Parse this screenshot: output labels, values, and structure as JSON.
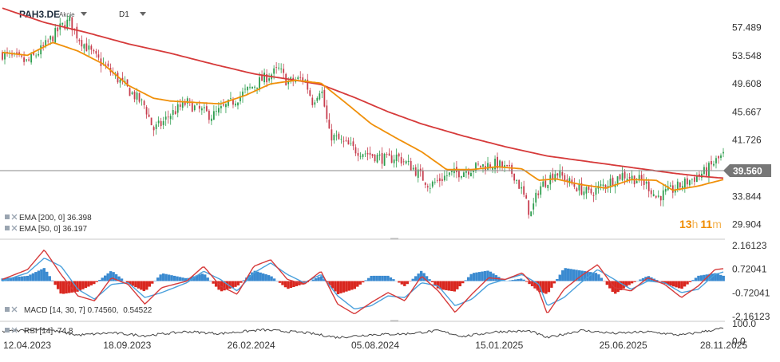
{
  "header": {
    "symbol": "PAH3.DE",
    "instrument_type": "Akcje",
    "timeframe": "D1"
  },
  "chart_data": [
    {
      "type": "candlestick",
      "title": "PAH3.DE",
      "x_ticks": [
        "12.04.2023",
        "18.09.2023",
        "26.02.2024",
        "05.08.2024",
        "15.01.2025",
        "25.06.2025",
        "28.11.2025"
      ],
      "y_ticks": [
        "57.489",
        "53.548",
        "49.608",
        "45.667",
        "41.726",
        "37.785",
        "33.844",
        "29.904"
      ],
      "ylim": [
        28.3,
        60.0
      ],
      "current_price": "39.560",
      "current_value": 39.56,
      "countdown": {
        "hours": "13",
        "h_unit": "h",
        "minutes": "11",
        "m_unit": "m"
      },
      "grid": false,
      "close_series": [
        [
          0,
          53.8
        ],
        [
          3,
          52.6
        ],
        [
          5,
          54.8
        ],
        [
          7,
          57.6
        ],
        [
          8,
          58.4
        ],
        [
          9,
          56.2
        ],
        [
          11,
          53.4
        ],
        [
          13,
          51.2
        ],
        [
          15,
          48.8
        ],
        [
          17,
          46.5
        ],
        [
          18,
          43.2
        ],
        [
          19,
          44.0
        ],
        [
          20,
          45.3
        ],
        [
          22,
          47.0
        ],
        [
          23,
          46.2
        ],
        [
          25,
          45.1
        ],
        [
          27,
          46.7
        ],
        [
          29,
          48.5
        ],
        [
          31,
          50.2
        ],
        [
          33,
          51.6
        ],
        [
          34,
          49.8
        ],
        [
          36,
          50.4
        ],
        [
          37,
          47.1
        ],
        [
          38,
          49.2
        ],
        [
          39,
          42.5
        ],
        [
          40,
          41.8
        ],
        [
          42,
          40.4
        ],
        [
          44,
          39.7
        ],
        [
          46,
          38.9
        ],
        [
          47,
          39.5
        ],
        [
          49,
          37.8
        ],
        [
          51,
          35.4
        ],
        [
          53,
          36.8
        ],
        [
          55,
          37.4
        ],
        [
          57,
          38.1
        ],
        [
          59,
          38.4
        ],
        [
          61,
          37.0
        ],
        [
          62,
          34.5
        ],
        [
          63,
          31.2
        ],
        [
          64,
          35.0
        ],
        [
          66,
          37.3
        ],
        [
          68,
          35.5
        ],
        [
          70,
          34.2
        ],
        [
          72,
          35.6
        ],
        [
          74,
          36.9
        ],
        [
          76,
          36.1
        ],
        [
          77,
          35.4
        ],
        [
          78,
          33.7
        ],
        [
          80,
          34.8
        ],
        [
          82,
          36.1
        ],
        [
          84,
          37.4
        ],
        [
          85,
          38.7
        ],
        [
          86,
          39.56
        ]
      ],
      "series": [
        {
          "name": "EMA",
          "params": "[200, 0]",
          "value": "36.398",
          "color": "#d63a3a",
          "values": [
            [
              0,
              60.2
            ],
            [
              5,
              58.2
            ],
            [
              10,
              56.8
            ],
            [
              15,
              55.2
            ],
            [
              20,
              53.9
            ],
            [
              25,
              52.4
            ],
            [
              30,
              51.0
            ],
            [
              35,
              50.1
            ],
            [
              38,
              49.5
            ],
            [
              42,
              47.7
            ],
            [
              46,
              45.7
            ],
            [
              50,
              44.0
            ],
            [
              55,
              42.3
            ],
            [
              60,
              40.8
            ],
            [
              65,
              39.5
            ],
            [
              70,
              38.7
            ],
            [
              75,
              37.9
            ],
            [
              80,
              37.1
            ],
            [
              83,
              36.7
            ],
            [
              86,
              36.4
            ]
          ]
        },
        {
          "name": "EMA",
          "params": "[50, 0]",
          "value": "36.197",
          "color": "#f0900a",
          "values": [
            [
              0,
              54.0
            ],
            [
              3,
              53.6
            ],
            [
              6,
              55.4
            ],
            [
              9,
              54.2
            ],
            [
              12,
              52.4
            ],
            [
              15,
              49.4
            ],
            [
              18,
              47.6
            ],
            [
              20,
              47.2
            ],
            [
              23,
              47.0
            ],
            [
              26,
              46.8
            ],
            [
              29,
              48.0
            ],
            [
              32,
              49.6
            ],
            [
              35,
              50.1
            ],
            [
              38,
              49.7
            ],
            [
              41,
              46.9
            ],
            [
              44,
              44.0
            ],
            [
              47,
              42.0
            ],
            [
              50,
              40.1
            ],
            [
              53,
              37.6
            ],
            [
              56,
              37.6
            ],
            [
              59,
              38.0
            ],
            [
              62,
              37.7
            ],
            [
              64,
              36.1
            ],
            [
              66,
              36.3
            ],
            [
              69,
              35.5
            ],
            [
              72,
              35.0
            ],
            [
              75,
              36.2
            ],
            [
              78,
              36.1
            ],
            [
              80,
              34.7
            ],
            [
              83,
              35.3
            ],
            [
              86,
              36.2
            ]
          ]
        }
      ]
    },
    {
      "type": "line",
      "title": "MACD",
      "params": "[14, 30, 7]",
      "values_label": [
        "0.74560",
        "0.54522"
      ],
      "y_ticks": [
        "2.16123",
        "0.72041",
        "-0.72041",
        "-2.16123"
      ],
      "ylim": [
        -2.3,
        2.3
      ],
      "grid": false,
      "series": [
        {
          "name": "MACD",
          "color": "#d63a3a",
          "values": [
            [
              0,
              0.1
            ],
            [
              3,
              0.7
            ],
            [
              5,
              1.9
            ],
            [
              7,
              0.4
            ],
            [
              9,
              -0.9
            ],
            [
              11,
              -1.2
            ],
            [
              13,
              0.2
            ],
            [
              15,
              -0.2
            ],
            [
              17,
              -1.4
            ],
            [
              19,
              -0.4
            ],
            [
              22,
              0.0
            ],
            [
              24,
              0.9
            ],
            [
              26,
              -0.3
            ],
            [
              28,
              -0.8
            ],
            [
              30,
              0.9
            ],
            [
              32,
              1.3
            ],
            [
              34,
              0.1
            ],
            [
              36,
              -0.2
            ],
            [
              38,
              0.6
            ],
            [
              40,
              -1.4
            ],
            [
              42,
              -2.0
            ],
            [
              44,
              -1.3
            ],
            [
              46,
              -0.7
            ],
            [
              48,
              -1.2
            ],
            [
              50,
              0.3
            ],
            [
              52,
              -0.6
            ],
            [
              54,
              -1.9
            ],
            [
              56,
              -0.8
            ],
            [
              58,
              0.2
            ],
            [
              60,
              0.1
            ],
            [
              62,
              0.5
            ],
            [
              64,
              -0.6
            ],
            [
              65,
              -2.0
            ],
            [
              67,
              -0.5
            ],
            [
              69,
              0.3
            ],
            [
              71,
              1.0
            ],
            [
              73,
              -0.4
            ],
            [
              75,
              -0.6
            ],
            [
              77,
              0.2
            ],
            [
              79,
              -0.2
            ],
            [
              81,
              -1.0
            ],
            [
              83,
              -0.3
            ],
            [
              85,
              0.7
            ],
            [
              86,
              0.75
            ]
          ]
        },
        {
          "name": "Signal",
          "color": "#4aa0dc",
          "values": [
            [
              0,
              0.0
            ],
            [
              3,
              0.5
            ],
            [
              5,
              1.4
            ],
            [
              7,
              0.9
            ],
            [
              9,
              -0.5
            ],
            [
              11,
              -1.1
            ],
            [
              13,
              -0.2
            ],
            [
              15,
              -0.1
            ],
            [
              17,
              -1.0
            ],
            [
              19,
              -0.7
            ],
            [
              22,
              -0.1
            ],
            [
              24,
              0.6
            ],
            [
              26,
              0.1
            ],
            [
              28,
              -0.6
            ],
            [
              30,
              0.5
            ],
            [
              32,
              1.1
            ],
            [
              34,
              0.4
            ],
            [
              36,
              -0.1
            ],
            [
              38,
              0.4
            ],
            [
              40,
              -0.9
            ],
            [
              42,
              -1.7
            ],
            [
              44,
              -1.5
            ],
            [
              46,
              -0.9
            ],
            [
              48,
              -1.0
            ],
            [
              50,
              -0.1
            ],
            [
              52,
              -0.3
            ],
            [
              54,
              -1.5
            ],
            [
              56,
              -1.1
            ],
            [
              58,
              -0.2
            ],
            [
              60,
              0.1
            ],
            [
              62,
              0.4
            ],
            [
              64,
              -0.2
            ],
            [
              65,
              -1.5
            ],
            [
              67,
              -1.0
            ],
            [
              69,
              -0.1
            ],
            [
              71,
              0.7
            ],
            [
              73,
              0.1
            ],
            [
              75,
              -0.5
            ],
            [
              77,
              0.0
            ],
            [
              79,
              -0.1
            ],
            [
              81,
              -0.7
            ],
            [
              83,
              -0.5
            ],
            [
              85,
              0.4
            ],
            [
              86,
              0.55
            ]
          ]
        }
      ]
    },
    {
      "type": "line",
      "title": "RSI",
      "params": "[14]",
      "value": "74.8",
      "y_ticks": [
        "100.0",
        "0.0"
      ],
      "ylim": [
        0,
        100
      ],
      "grid": false,
      "series": [
        {
          "name": "RSI",
          "color": "#444444",
          "values": [
            [
              0,
              55
            ],
            [
              5,
              70
            ],
            [
              9,
              35
            ],
            [
              13,
              48
            ],
            [
              17,
              32
            ],
            [
              22,
              55
            ],
            [
              26,
              44
            ],
            [
              31,
              65
            ],
            [
              36,
              50
            ],
            [
              40,
              22
            ],
            [
              44,
              38
            ],
            [
              48,
              42
            ],
            [
              52,
              60
            ],
            [
              55,
              28
            ],
            [
              59,
              55
            ],
            [
              63,
              58
            ],
            [
              65,
              20
            ],
            [
              69,
              62
            ],
            [
              73,
              45
            ],
            [
              77,
              54
            ],
            [
              81,
              35
            ],
            [
              85,
              66
            ],
            [
              86,
              74.8
            ]
          ]
        }
      ]
    }
  ]
}
